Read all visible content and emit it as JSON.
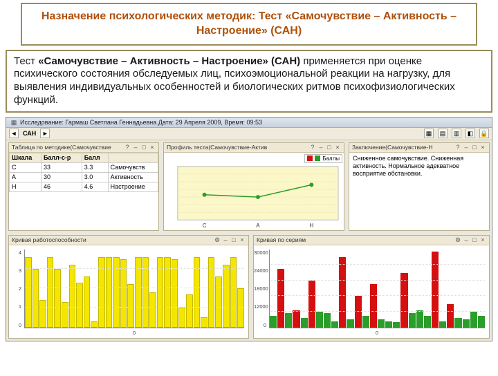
{
  "header": {
    "title": "Назначение психологических методик: Тест «Самочувствие – Активность – Настроение» (САН)"
  },
  "description": {
    "html": "   Тест <b>«Самочувствие – Активность – Настроение» (САН)</b> применяется при оценке психического состояния обследуемых лиц, психоэмоциональной реакции на нагрузку, для выявления индивидуальных особенностей и биологических ритмов психофизиологических функций."
  },
  "app": {
    "titlebar": "Исследование: Гармаш Светлана Геннадьевна Дата: 29 Апреля 2009, Время: 09:53",
    "toolbar_label": "САН",
    "panels": {
      "table": {
        "title": "Таблица по методике(Самочувствие",
        "columns": [
          "Шкала",
          "Балл-с-р",
          "Балл",
          ""
        ],
        "rows": [
          [
            "С",
            "33",
            "3.3",
            "Самочувств"
          ],
          [
            "А",
            "30",
            "3.0",
            "Активность"
          ],
          [
            "Н",
            "46",
            "4.6",
            "Настроение"
          ]
        ]
      },
      "profile": {
        "title": "Профиль теста(Самочувствие-Актив",
        "series": [
          {
            "label": "",
            "color": "#d41010"
          },
          {
            "label": "Баллы",
            "color": "#2a9d2a"
          }
        ],
        "bg": "#fbf7c8",
        "x": [
          "С",
          "А",
          "Н"
        ],
        "points": [
          3.3,
          3.0,
          4.6
        ],
        "ymax": 7
      },
      "conclusion": {
        "title": "Заключение(Самочувствие-Н",
        "text": "Сниженное самочувствие.\nСниженная активность.\nНормальное адекватное восприятие обстановки."
      },
      "bars_yellow": {
        "title": "Кривая работоспособности",
        "color": "#f5e600",
        "ylabels": [
          "4",
          "3",
          "2",
          "1",
          "0"
        ],
        "x_start": "0",
        "values": [
          3.6,
          3.0,
          1.4,
          3.6,
          3.0,
          1.3,
          3.2,
          2.3,
          2.6,
          0.3,
          3.6,
          3.6,
          3.6,
          3.5,
          2.2,
          3.6,
          3.6,
          1.8,
          3.6,
          3.6,
          3.5,
          1.0,
          1.7,
          3.6,
          0.5,
          3.6,
          2.6,
          3.2,
          3.6,
          2.0
        ]
      },
      "bars_rg": {
        "title": "Кривая по сериям",
        "ylabels": [
          "30000",
          "24000",
          "18000",
          "12000",
          "0"
        ],
        "x_start": "0",
        "bars": [
          {
            "v": 0.15,
            "c": "#2a9d2a"
          },
          {
            "v": 0.75,
            "c": "#d41010"
          },
          {
            "v": 0.18,
            "c": "#2a9d2a"
          },
          {
            "v": 0.22,
            "c": "#d41010"
          },
          {
            "v": 0.12,
            "c": "#2a9d2a"
          },
          {
            "v": 0.6,
            "c": "#d41010"
          },
          {
            "v": 0.2,
            "c": "#2a9d2a"
          },
          {
            "v": 0.18,
            "c": "#2a9d2a"
          },
          {
            "v": 0.08,
            "c": "#2a9d2a"
          },
          {
            "v": 0.9,
            "c": "#d41010"
          },
          {
            "v": 0.1,
            "c": "#2a9d2a"
          },
          {
            "v": 0.4,
            "c": "#d41010"
          },
          {
            "v": 0.15,
            "c": "#2a9d2a"
          },
          {
            "v": 0.55,
            "c": "#d41010"
          },
          {
            "v": 0.1,
            "c": "#2a9d2a"
          },
          {
            "v": 0.08,
            "c": "#2a9d2a"
          },
          {
            "v": 0.07,
            "c": "#2a9d2a"
          },
          {
            "v": 0.7,
            "c": "#d41010"
          },
          {
            "v": 0.18,
            "c": "#2a9d2a"
          },
          {
            "v": 0.22,
            "c": "#2a9d2a"
          },
          {
            "v": 0.15,
            "c": "#2a9d2a"
          },
          {
            "v": 0.97,
            "c": "#d41010"
          },
          {
            "v": 0.08,
            "c": "#2a9d2a"
          },
          {
            "v": 0.3,
            "c": "#d41010"
          },
          {
            "v": 0.12,
            "c": "#2a9d2a"
          },
          {
            "v": 0.1,
            "c": "#2a9d2a"
          },
          {
            "v": 0.2,
            "c": "#2a9d2a"
          },
          {
            "v": 0.15,
            "c": "#2a9d2a"
          }
        ]
      }
    }
  },
  "icons": {
    "gear": "⚙",
    "close": "×",
    "min": "–",
    "max": "□",
    "lock": "🔒",
    "help": "?",
    "doc": "▦"
  }
}
